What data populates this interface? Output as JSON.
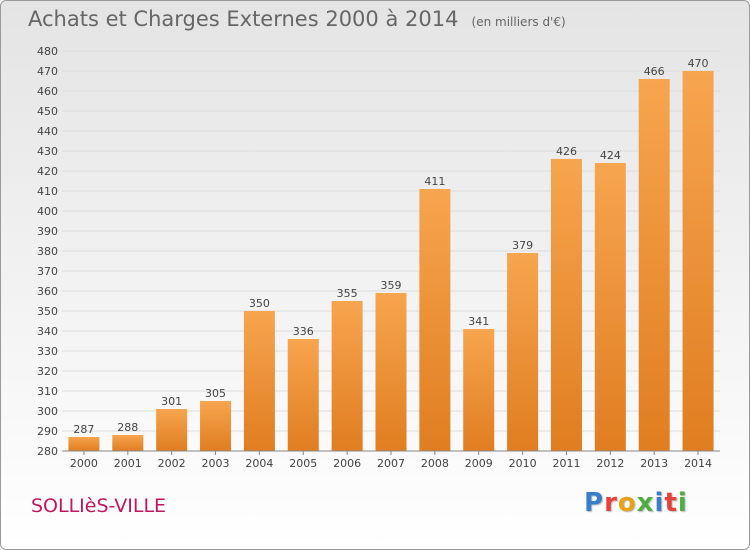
{
  "colors": {
    "bar_top": "#f7a54f",
    "bar_bottom": "#e07d20",
    "axis_text": "#444444",
    "grid": "#dddddd",
    "title": "#666666",
    "commune": "#c0185f",
    "logo": [
      "#3a7dc8",
      "#e8413c",
      "#e8a21a",
      "#4caf3f",
      "#3a7dc8",
      "#e8413c",
      "#4caf3f"
    ]
  },
  "header": {
    "title": "Achats et Charges Externes 2000 à 2014",
    "subtitle": "(en milliers d'€)"
  },
  "footer": {
    "commune": "SOLLIèS-VILLE",
    "logo_letters": [
      "P",
      "r",
      "o",
      "x",
      "i",
      "t",
      "i"
    ]
  },
  "chart_data": {
    "type": "bar",
    "title": "Achats et Charges Externes 2000 à 2014",
    "subtitle": "(en milliers d'€)",
    "categories": [
      "2000",
      "2001",
      "2002",
      "2003",
      "2004",
      "2005",
      "2006",
      "2007",
      "2008",
      "2009",
      "2010",
      "2011",
      "2012",
      "2013",
      "2014"
    ],
    "values": [
      287,
      288,
      301,
      305,
      350,
      336,
      355,
      359,
      411,
      341,
      379,
      426,
      424,
      466,
      470
    ],
    "ylim": [
      280,
      480
    ],
    "ytick_step": 10,
    "grid": true,
    "legend": false
  }
}
